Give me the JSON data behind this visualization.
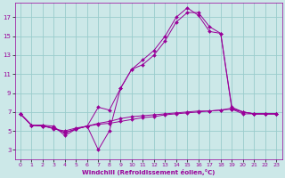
{
  "background_color": "#cce8e8",
  "grid_color": "#99cccc",
  "line_color": "#990099",
  "xlabel": "Windchill (Refroidissement éolien,°C)",
  "xlim": [
    -0.5,
    23.5
  ],
  "ylim": [
    2.0,
    18.5
  ],
  "yticks": [
    3,
    5,
    7,
    9,
    11,
    13,
    15,
    17
  ],
  "xticks": [
    0,
    1,
    2,
    3,
    4,
    5,
    6,
    7,
    8,
    9,
    10,
    11,
    12,
    13,
    14,
    15,
    16,
    17,
    18,
    19,
    20,
    21,
    22,
    23
  ],
  "series": [
    {
      "x": [
        0,
        1,
        2,
        3,
        4,
        5,
        6,
        7,
        8,
        9,
        10,
        11,
        12,
        13,
        14,
        15,
        16,
        17,
        18,
        19,
        20,
        21,
        22,
        23
      ],
      "y": [
        6.8,
        5.6,
        5.6,
        5.5,
        4.5,
        5.2,
        5.5,
        3.0,
        5.0,
        9.5,
        11.5,
        12.5,
        13.5,
        15.0,
        17.0,
        18.0,
        17.2,
        15.5,
        15.3,
        7.5,
        7.0,
        6.8,
        6.8,
        6.8
      ]
    },
    {
      "x": [
        0,
        1,
        2,
        3,
        4,
        5,
        6,
        7,
        8,
        9,
        10,
        11,
        12,
        13,
        14,
        15,
        16,
        17,
        18,
        19,
        20,
        21,
        22,
        23
      ],
      "y": [
        6.8,
        5.6,
        5.6,
        5.2,
        5.0,
        5.3,
        5.5,
        7.5,
        7.2,
        9.5,
        11.5,
        12.0,
        13.0,
        14.5,
        16.5,
        17.5,
        17.5,
        16.0,
        15.3,
        7.3,
        6.8,
        6.8,
        6.8,
        6.8
      ]
    },
    {
      "x": [
        0,
        1,
        2,
        3,
        4,
        5,
        6,
        7,
        8,
        9,
        10,
        11,
        12,
        13,
        14,
        15,
        16,
        17,
        18,
        19,
        20,
        21,
        22,
        23
      ],
      "y": [
        6.8,
        5.6,
        5.5,
        5.3,
        4.8,
        5.2,
        5.5,
        5.7,
        5.8,
        6.0,
        6.2,
        6.4,
        6.5,
        6.7,
        6.8,
        6.9,
        7.0,
        7.1,
        7.2,
        7.3,
        7.0,
        6.8,
        6.8,
        6.8
      ]
    },
    {
      "x": [
        0,
        1,
        2,
        3,
        4,
        5,
        6,
        7,
        8,
        9,
        10,
        11,
        12,
        13,
        14,
        15,
        16,
        17,
        18,
        19,
        20,
        21,
        22,
        23
      ],
      "y": [
        6.8,
        5.6,
        5.5,
        5.3,
        4.8,
        5.2,
        5.5,
        5.8,
        6.0,
        6.3,
        6.5,
        6.6,
        6.7,
        6.8,
        6.9,
        7.0,
        7.1,
        7.1,
        7.2,
        7.4,
        7.0,
        6.8,
        6.8,
        6.8
      ]
    }
  ]
}
